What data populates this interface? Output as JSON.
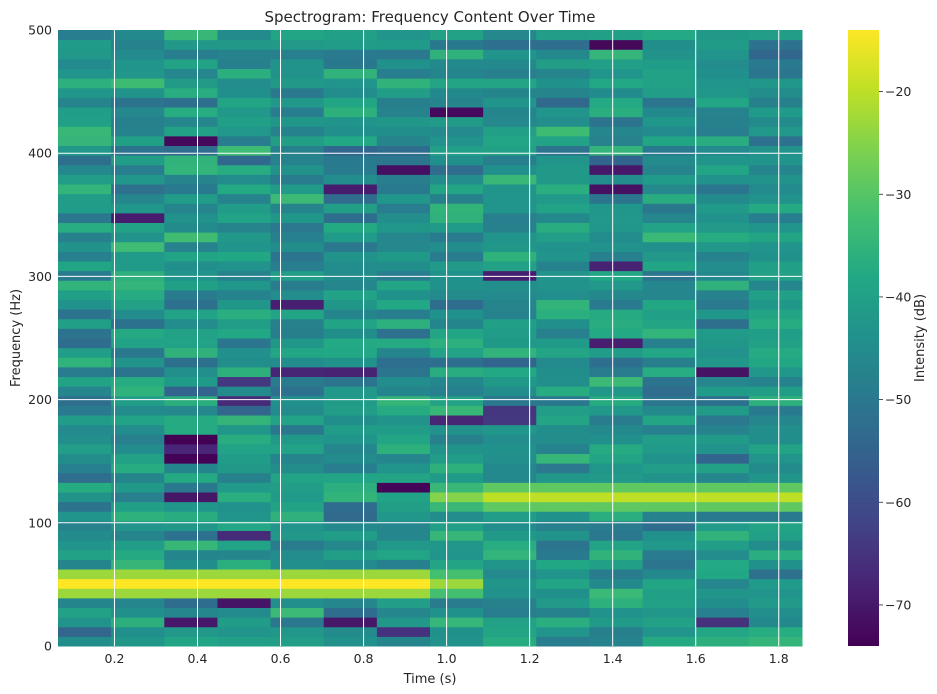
{
  "chart_data": {
    "type": "heatmap",
    "title": "Spectrogram: Frequency Content Over Time",
    "xlabel": "Time (s)",
    "ylabel": "Frequency (Hz)",
    "xlim": [
      0.064,
      1.856
    ],
    "ylim": [
      0,
      500
    ],
    "x_ticks": [
      0.2,
      0.4,
      0.6,
      0.8,
      1.0,
      1.2,
      1.4,
      1.6,
      1.8
    ],
    "x_tick_labels": [
      "0.2",
      "0.4",
      "0.6",
      "0.8",
      "1.0",
      "1.2",
      "1.4",
      "1.6",
      "1.8"
    ],
    "y_ticks": [
      0,
      100,
      200,
      300,
      400,
      500
    ],
    "y_tick_labels": [
      "0",
      "100",
      "200",
      "300",
      "400",
      "500"
    ],
    "time_bins": [
      0.128,
      0.256,
      0.384,
      0.512,
      0.64,
      0.768,
      0.896,
      1.024,
      1.152,
      1.28,
      1.408,
      1.536,
      1.664,
      1.792
    ],
    "freq_bin_width_hz": 7.8125,
    "colormap": "viridis",
    "grid": true,
    "colorbar": {
      "label": "Intensity (dB)",
      "range": [
        -74,
        -14
      ],
      "ticks": [
        -20,
        -30,
        -40,
        -50,
        -60,
        -70
      ],
      "tick_labels": [
        "−20",
        "−30",
        "−40",
        "−50",
        "−60",
        "−70"
      ]
    },
    "background_db_range": [
      -55,
      -32
    ],
    "tones": [
      {
        "t_start": 0.064,
        "t_end": 0.96,
        "freq_hz": 50,
        "intensity_db": -14
      },
      {
        "t_start": 0.96,
        "t_end": 1.088,
        "freq_hz": 50,
        "intensity_db": -23
      },
      {
        "t_start": 0.96,
        "t_end": 1.088,
        "freq_hz": 120,
        "intensity_db": -25
      },
      {
        "t_start": 1.088,
        "t_end": 1.856,
        "freq_hz": 120,
        "intensity_db": -20
      }
    ]
  }
}
